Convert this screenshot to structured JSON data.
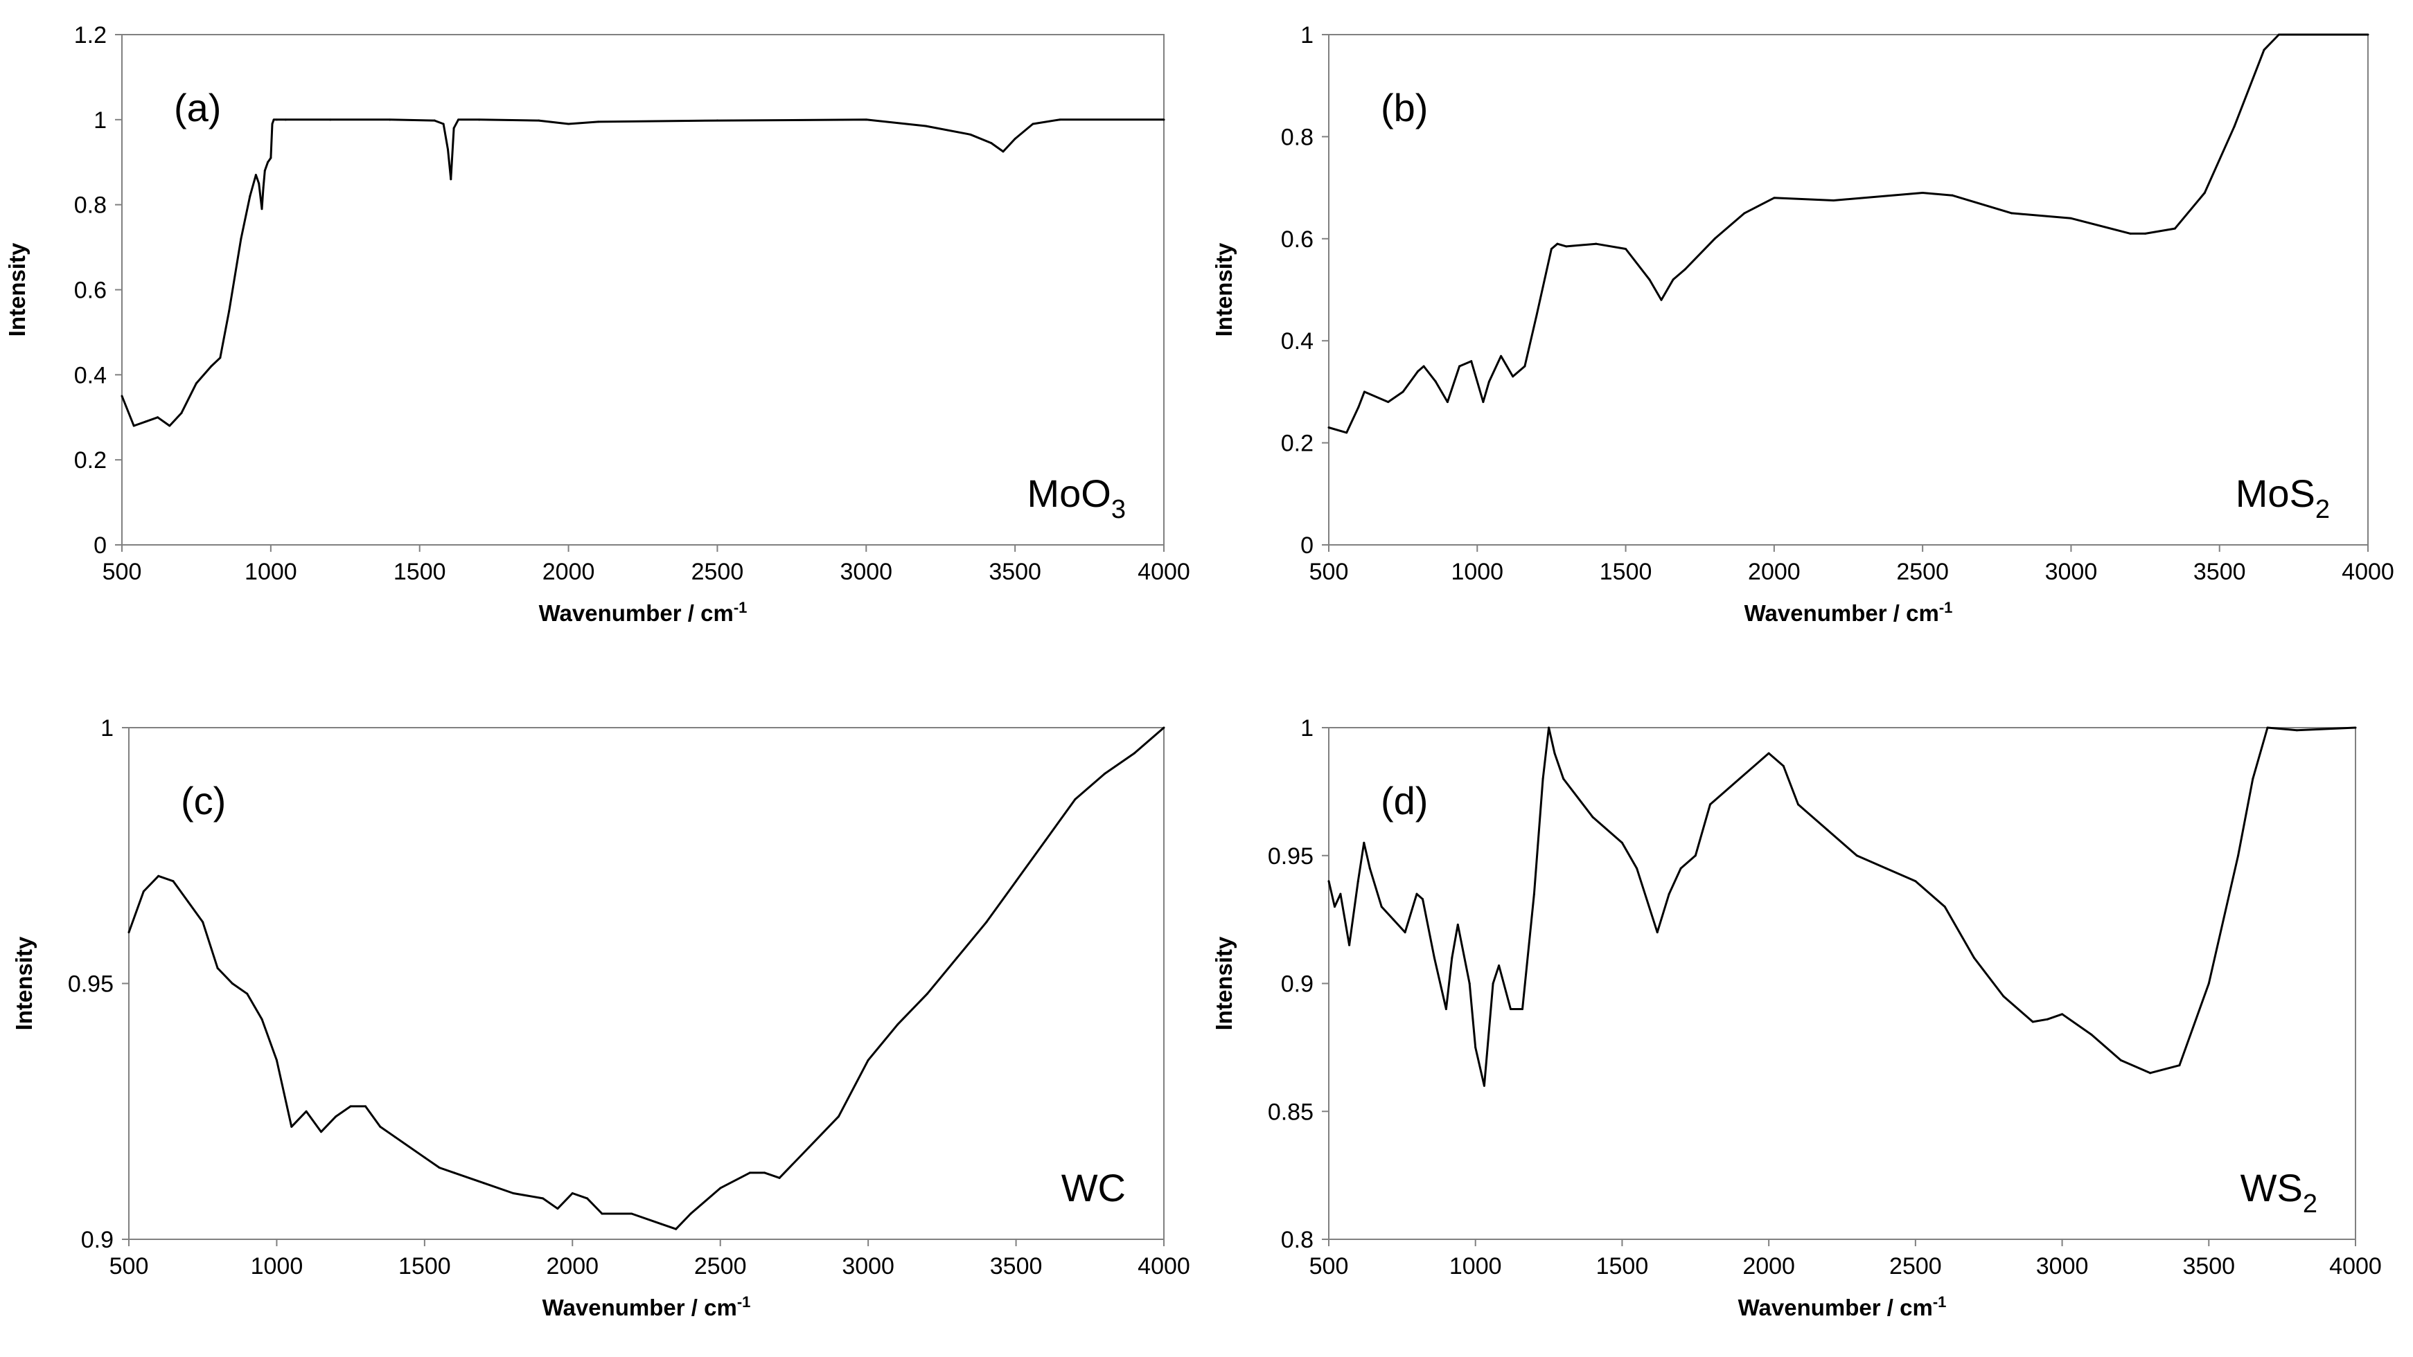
{
  "figure": {
    "panels": [
      "(a)",
      "(b)",
      "(c)",
      "(d)"
    ]
  },
  "chart_data": [
    {
      "type": "line",
      "panel_label": "(a)",
      "compound": {
        "base": "MoO",
        "sub": "3"
      },
      "xlabel": "Wavenumber / cm",
      "xlabel_sup": "-1",
      "ylabel": "Intensity",
      "xlim": [
        500,
        4000
      ],
      "ylim": [
        0,
        1.2
      ],
      "x_ticks": [
        500,
        1000,
        1500,
        2000,
        2500,
        3000,
        3500,
        4000
      ],
      "y_ticks": [
        0,
        0.2,
        0.4,
        0.6,
        0.8,
        1,
        1.2
      ],
      "y_tick_labels": [
        "0",
        "0.2",
        "0.4",
        "0.6",
        "0.8",
        "1",
        "1.2"
      ],
      "color": "#000000",
      "x": [
        500,
        540,
        580,
        620,
        660,
        700,
        750,
        800,
        830,
        860,
        900,
        930,
        950,
        960,
        970,
        975,
        980,
        990,
        1000,
        1005,
        1010,
        1020,
        1050,
        1200,
        1400,
        1550,
        1580,
        1595,
        1605,
        1615,
        1630,
        1700,
        1900,
        2000,
        2100,
        2500,
        3000,
        3200,
        3350,
        3420,
        3460,
        3500,
        3560,
        3650,
        4000
      ],
      "y": [
        0.35,
        0.28,
        0.29,
        0.3,
        0.28,
        0.31,
        0.38,
        0.42,
        0.44,
        0.55,
        0.72,
        0.82,
        0.87,
        0.85,
        0.79,
        0.84,
        0.88,
        0.9,
        0.91,
        0.99,
        1.0,
        1.0,
        1.0,
        1.0,
        1.0,
        0.998,
        0.99,
        0.93,
        0.86,
        0.98,
        1.0,
        1.0,
        0.998,
        0.99,
        0.995,
        0.998,
        1.0,
        0.985,
        0.965,
        0.945,
        0.925,
        0.955,
        0.99,
        1.0,
        1.0
      ]
    },
    {
      "type": "line",
      "panel_label": "(b)",
      "compound": {
        "base": "MoS",
        "sub": "2"
      },
      "xlabel": "Wavenumber / cm",
      "xlabel_sup": "-1",
      "ylabel": "Intensity",
      "xlim": [
        500,
        4000
      ],
      "ylim": [
        0,
        1
      ],
      "x_ticks": [
        500,
        1000,
        1500,
        2000,
        2500,
        3000,
        3500,
        4000
      ],
      "y_ticks": [
        0,
        0.2,
        0.4,
        0.6,
        0.8,
        1
      ],
      "y_tick_labels": [
        "0",
        "0.2",
        "0.4",
        "0.6",
        "0.8",
        "1"
      ],
      "color": "#000000",
      "x": [
        500,
        560,
        600,
        620,
        700,
        750,
        800,
        820,
        860,
        900,
        940,
        980,
        1020,
        1040,
        1080,
        1120,
        1160,
        1200,
        1250,
        1270,
        1300,
        1400,
        1500,
        1580,
        1620,
        1660,
        1700,
        1800,
        1900,
        2000,
        2200,
        2500,
        2600,
        2800,
        3000,
        3200,
        3250,
        3350,
        3450,
        3550,
        3650,
        3700,
        3750,
        4000
      ],
      "y": [
        0.23,
        0.22,
        0.27,
        0.3,
        0.28,
        0.3,
        0.34,
        0.35,
        0.32,
        0.28,
        0.35,
        0.36,
        0.28,
        0.32,
        0.37,
        0.33,
        0.35,
        0.45,
        0.58,
        0.59,
        0.585,
        0.59,
        0.58,
        0.52,
        0.48,
        0.52,
        0.54,
        0.6,
        0.65,
        0.68,
        0.675,
        0.69,
        0.685,
        0.65,
        0.64,
        0.61,
        0.61,
        0.62,
        0.69,
        0.82,
        0.97,
        1.0,
        1.0,
        1.0
      ]
    },
    {
      "type": "line",
      "panel_label": "(c)",
      "compound": {
        "base": "WC",
        "sub": ""
      },
      "xlabel": "Wavenumber / cm",
      "xlabel_sup": "-1",
      "ylabel": "Intensity",
      "xlim": [
        500,
        4000
      ],
      "ylim": [
        0.9,
        1
      ],
      "x_ticks": [
        500,
        1000,
        1500,
        2000,
        2500,
        3000,
        3500,
        4000
      ],
      "y_ticks": [
        0.9,
        0.95,
        1
      ],
      "y_tick_labels": [
        "0.9",
        "0.95",
        "1"
      ],
      "color": "#000000",
      "x": [
        500,
        550,
        600,
        650,
        700,
        750,
        800,
        850,
        900,
        950,
        1000,
        1050,
        1100,
        1150,
        1200,
        1250,
        1300,
        1350,
        1400,
        1500,
        1550,
        1600,
        1700,
        1800,
        1900,
        1950,
        2000,
        2050,
        2100,
        2200,
        2300,
        2350,
        2400,
        2500,
        2600,
        2650,
        2700,
        2800,
        2900,
        3000,
        3100,
        3200,
        3300,
        3400,
        3500,
        3600,
        3700,
        3800,
        3900,
        4000
      ],
      "y": [
        0.96,
        0.968,
        0.971,
        0.97,
        0.966,
        0.962,
        0.953,
        0.95,
        0.948,
        0.943,
        0.935,
        0.922,
        0.925,
        0.921,
        0.924,
        0.926,
        0.926,
        0.922,
        0.92,
        0.916,
        0.914,
        0.913,
        0.911,
        0.909,
        0.908,
        0.906,
        0.909,
        0.908,
        0.905,
        0.905,
        0.903,
        0.902,
        0.905,
        0.91,
        0.913,
        0.913,
        0.912,
        0.918,
        0.924,
        0.935,
        0.942,
        0.948,
        0.955,
        0.962,
        0.97,
        0.978,
        0.986,
        0.991,
        0.995,
        1.0
      ]
    },
    {
      "type": "line",
      "panel_label": "(d)",
      "compound": {
        "base": "WS",
        "sub": "2"
      },
      "xlabel": "Wavenumber / cm",
      "xlabel_sup": "-1",
      "ylabel": "Intensity",
      "xlim": [
        500,
        4000
      ],
      "ylim": [
        0.8,
        1
      ],
      "x_ticks": [
        500,
        1000,
        1500,
        2000,
        2500,
        3000,
        3500,
        4000
      ],
      "y_ticks": [
        0.8,
        0.85,
        0.9,
        0.95,
        1
      ],
      "y_tick_labels": [
        "0.8",
        "0.85",
        "0.9",
        "0.95",
        "1"
      ],
      "color": "#000000",
      "x": [
        500,
        520,
        540,
        570,
        600,
        620,
        640,
        680,
        720,
        760,
        800,
        820,
        860,
        900,
        920,
        940,
        980,
        1000,
        1030,
        1060,
        1080,
        1120,
        1160,
        1200,
        1230,
        1250,
        1270,
        1300,
        1400,
        1500,
        1550,
        1620,
        1660,
        1700,
        1750,
        1800,
        1900,
        2000,
        2050,
        2100,
        2200,
        2300,
        2400,
        2500,
        2600,
        2700,
        2800,
        2900,
        2950,
        3000,
        3100,
        3200,
        3300,
        3400,
        3500,
        3600,
        3650,
        3700,
        3800,
        4000
      ],
      "y": [
        0.94,
        0.93,
        0.935,
        0.915,
        0.94,
        0.955,
        0.945,
        0.93,
        0.925,
        0.92,
        0.935,
        0.933,
        0.91,
        0.89,
        0.91,
        0.923,
        0.9,
        0.875,
        0.86,
        0.9,
        0.907,
        0.89,
        0.89,
        0.935,
        0.98,
        1.0,
        0.99,
        0.98,
        0.965,
        0.955,
        0.945,
        0.92,
        0.935,
        0.945,
        0.95,
        0.97,
        0.98,
        0.99,
        0.985,
        0.97,
        0.96,
        0.95,
        0.945,
        0.94,
        0.93,
        0.91,
        0.895,
        0.885,
        0.886,
        0.888,
        0.88,
        0.87,
        0.865,
        0.868,
        0.9,
        0.95,
        0.98,
        1.0,
        0.999,
        1.0
      ]
    }
  ]
}
